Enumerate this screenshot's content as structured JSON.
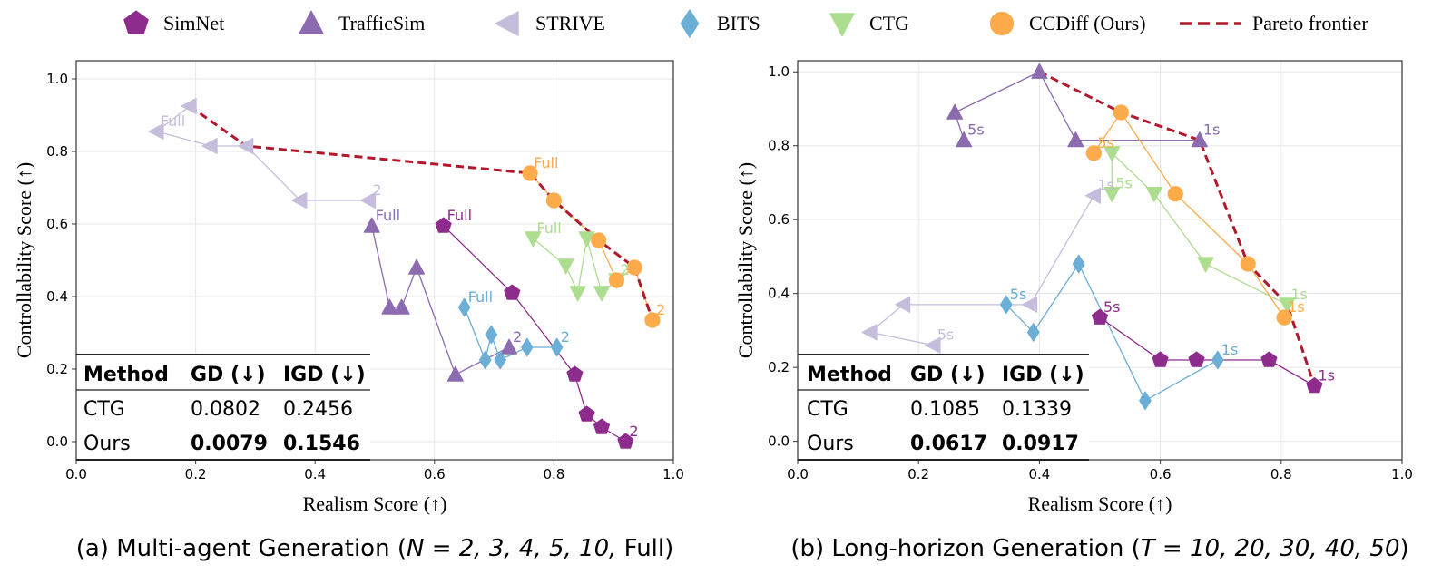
{
  "legend": {
    "items": [
      {
        "label": "SimNet",
        "marker": "pentagon",
        "color": "#8e2c8e"
      },
      {
        "label": "TrafficSim",
        "marker": "triangle-up",
        "color": "#8c6bb1"
      },
      {
        "label": "STRIVE",
        "marker": "triangle-left",
        "color": "#c6bddc"
      },
      {
        "label": "BITS",
        "marker": "diamond",
        "color": "#6baed6"
      },
      {
        "label": "CTG",
        "marker": "triangle-down",
        "color": "#addd8e"
      },
      {
        "label": "CCDiff (Ours)",
        "marker": "circle",
        "color": "#fdab4b"
      },
      {
        "label": "Pareto frontier",
        "marker": "dashed-line",
        "color": "#b2182b"
      }
    ]
  },
  "chart_data": [
    {
      "type": "scatter",
      "id": "a",
      "caption": {
        "prefix": "(a)  Multi-agent Generation (",
        "math": "N = 2, 3, 4, 5, 10, ",
        "suffix": "Full)"
      },
      "xlabel": "Realism Score (↑)",
      "ylabel": "Controllability Score (↑)",
      "xlim": [
        0,
        1
      ],
      "ylim": [
        -0.05,
        1.05
      ],
      "xticks": [
        "0.0",
        "0.2",
        "0.4",
        "0.6",
        "0.8",
        "1.0"
      ],
      "yticks": [
        "0.0",
        "0.2",
        "0.4",
        "0.6",
        "0.8",
        "1.0"
      ],
      "series": [
        {
          "name": "STRIVE",
          "points": [
            [
              0.19,
              0.925
            ],
            [
              0.135,
              0.855
            ],
            [
              0.225,
              0.815
            ],
            [
              0.285,
              0.815
            ],
            [
              0.375,
              0.665
            ],
            [
              0.49,
              0.665
            ]
          ],
          "labels": [
            {
              "i": 1,
              "text": "Full"
            },
            {
              "i": 5,
              "text": "2"
            }
          ]
        },
        {
          "name": "TrafficSim",
          "points": [
            [
              0.495,
              0.595
            ],
            [
              0.525,
              0.37
            ],
            [
              0.545,
              0.37
            ],
            [
              0.57,
              0.48
            ],
            [
              0.635,
              0.185
            ],
            [
              0.725,
              0.26
            ]
          ],
          "labels": [
            {
              "i": 0,
              "text": "Full"
            },
            {
              "i": 5,
              "text": "2"
            }
          ]
        },
        {
          "name": "SimNet",
          "points": [
            [
              0.615,
              0.595
            ],
            [
              0.73,
              0.41
            ],
            [
              0.835,
              0.185
            ],
            [
              0.855,
              0.075
            ],
            [
              0.88,
              0.04
            ],
            [
              0.92,
              0.0
            ]
          ],
          "labels": [
            {
              "i": 0,
              "text": "Full"
            },
            {
              "i": 5,
              "text": "2"
            }
          ]
        },
        {
          "name": "BITS",
          "points": [
            [
              0.65,
              0.37
            ],
            [
              0.685,
              0.225
            ],
            [
              0.695,
              0.295
            ],
            [
              0.71,
              0.225
            ],
            [
              0.755,
              0.26
            ],
            [
              0.805,
              0.26
            ]
          ],
          "labels": [
            {
              "i": 0,
              "text": "Full"
            },
            {
              "i": 5,
              "text": "2"
            }
          ]
        },
        {
          "name": "CTG",
          "points": [
            [
              0.765,
              0.56
            ],
            [
              0.82,
              0.485
            ],
            [
              0.84,
              0.41
            ],
            [
              0.855,
              0.56
            ],
            [
              0.88,
              0.41
            ],
            [
              0.905,
              0.445
            ]
          ],
          "labels": [
            {
              "i": 0,
              "text": "Full"
            },
            {
              "i": 5,
              "text": "2"
            }
          ]
        },
        {
          "name": "CCDiff (Ours)",
          "points": [
            [
              0.76,
              0.74
            ],
            [
              0.8,
              0.665
            ],
            [
              0.875,
              0.555
            ],
            [
              0.905,
              0.445
            ],
            [
              0.935,
              0.48
            ],
            [
              0.965,
              0.335
            ]
          ],
          "labels": [
            {
              "i": 0,
              "text": "Full"
            },
            {
              "i": 5,
              "text": "2"
            }
          ]
        }
      ],
      "pareto": [
        [
          0.19,
          0.925
        ],
        [
          0.285,
          0.815
        ],
        [
          0.76,
          0.74
        ],
        [
          0.8,
          0.665
        ],
        [
          0.875,
          0.555
        ],
        [
          0.935,
          0.48
        ],
        [
          0.965,
          0.335
        ]
      ],
      "table": {
        "headers": [
          "Method",
          "GD (↓)",
          "IGD (↓)"
        ],
        "rows": [
          [
            "CTG",
            "0.0802",
            "0.2456"
          ],
          [
            "Ours",
            "0.0079",
            "0.1546"
          ]
        ]
      }
    },
    {
      "type": "scatter",
      "id": "b",
      "caption": {
        "prefix": "(b) Long-horizon Generation (",
        "math": "T = 10, 20, 30, 40, 50",
        "suffix": ")"
      },
      "xlabel": "Realism Score (↑)",
      "ylabel": "Controllability Score (↑)",
      "xlim": [
        0,
        1
      ],
      "ylim": [
        -0.05,
        1.03
      ],
      "xticks": [
        "0.0",
        "0.2",
        "0.4",
        "0.6",
        "0.8",
        "1.0"
      ],
      "yticks": [
        "0.0",
        "0.2",
        "0.4",
        "0.6",
        "0.8",
        "1.0"
      ],
      "series": [
        {
          "name": "TrafficSim",
          "points": [
            [
              0.275,
              0.815
            ],
            [
              0.26,
              0.89
            ],
            [
              0.4,
              1.0
            ],
            [
              0.46,
              0.815
            ],
            [
              0.665,
              0.815
            ]
          ],
          "labels": [
            {
              "i": 0,
              "text": "5s"
            },
            {
              "i": 4,
              "text": "1s"
            }
          ]
        },
        {
          "name": "STRIVE",
          "points": [
            [
              0.225,
              0.26
            ],
            [
              0.12,
              0.295
            ],
            [
              0.175,
              0.37
            ],
            [
              0.385,
              0.37
            ],
            [
              0.49,
              0.665
            ]
          ],
          "labels": [
            {
              "i": 0,
              "text": "5s"
            },
            {
              "i": 4,
              "text": "1s"
            }
          ]
        },
        {
          "name": "BITS",
          "points": [
            [
              0.345,
              0.37
            ],
            [
              0.39,
              0.295
            ],
            [
              0.465,
              0.48
            ],
            [
              0.575,
              0.11
            ],
            [
              0.695,
              0.22
            ]
          ],
          "labels": [
            {
              "i": 0,
              "text": "5s"
            },
            {
              "i": 4,
              "text": "1s"
            }
          ]
        },
        {
          "name": "SimNet",
          "points": [
            [
              0.5,
              0.335
            ],
            [
              0.6,
              0.22
            ],
            [
              0.66,
              0.22
            ],
            [
              0.78,
              0.22
            ],
            [
              0.855,
              0.15
            ]
          ],
          "labels": [
            {
              "i": 0,
              "text": "5s"
            },
            {
              "i": 4,
              "text": "1s"
            }
          ]
        },
        {
          "name": "CTG",
          "points": [
            [
              0.52,
              0.67
            ],
            [
              0.52,
              0.78
            ],
            [
              0.59,
              0.67
            ],
            [
              0.675,
              0.48
            ],
            [
              0.81,
              0.37
            ]
          ],
          "labels": [
            {
              "i": 0,
              "text": "5s"
            },
            {
              "i": 4,
              "text": "1s"
            }
          ]
        },
        {
          "name": "CCDiff (Ours)",
          "points": [
            [
              0.49,
              0.78
            ],
            [
              0.535,
              0.89
            ],
            [
              0.625,
              0.67
            ],
            [
              0.745,
              0.48
            ],
            [
              0.805,
              0.335
            ]
          ],
          "labels": [
            {
              "i": 0,
              "text": "5s"
            },
            {
              "i": 4,
              "text": "1s"
            }
          ]
        }
      ],
      "pareto": [
        [
          0.4,
          1.0
        ],
        [
          0.535,
          0.89
        ],
        [
          0.665,
          0.815
        ],
        [
          0.745,
          0.48
        ],
        [
          0.81,
          0.37
        ],
        [
          0.855,
          0.15
        ]
      ],
      "table": {
        "headers": [
          "Method",
          "GD (↓)",
          "IGD (↓)"
        ],
        "rows": [
          [
            "CTG",
            "0.1085",
            "0.1339"
          ],
          [
            "Ours",
            "0.0617",
            "0.0917"
          ]
        ]
      }
    }
  ]
}
